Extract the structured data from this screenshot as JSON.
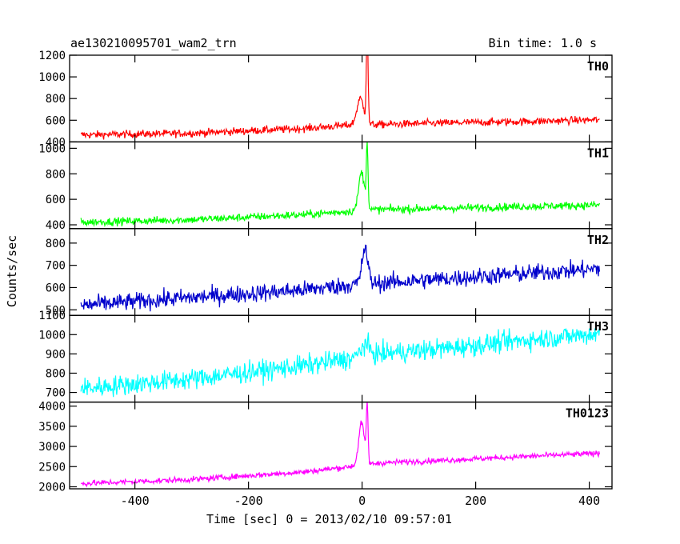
{
  "header": {
    "title": "ae130210095701_wam2_trn",
    "bin_time": "Bin time: 1.0 s"
  },
  "axes": {
    "ylabel": "Counts/sec",
    "xlabel": "Time [sec] 0 = 2013/02/10 09:57:01"
  },
  "chart_data": {
    "type": "line",
    "xlim": [
      -515,
      440
    ],
    "x_ticks": [
      -400,
      -200,
      0,
      200,
      400
    ],
    "x_range_data": [
      -495,
      418
    ],
    "grid": false,
    "legend": "none",
    "panels": [
      {
        "name": "TH0",
        "color": "#ff0000",
        "ylim": [
          400,
          1200
        ],
        "y_ticks": [
          400,
          600,
          800,
          1000,
          1200
        ],
        "baseline": [
          [
            -495,
            465
          ],
          [
            -300,
            480
          ],
          [
            -100,
            525
          ],
          [
            -10,
            560
          ],
          [
            30,
            560
          ],
          [
            150,
            575
          ],
          [
            300,
            590
          ],
          [
            418,
            605
          ]
        ],
        "noise": 25,
        "peaks": [
          [
            -3,
            240,
            6
          ],
          [
            9,
            900,
            1.5
          ]
        ]
      },
      {
        "name": "TH1",
        "color": "#00ff00",
        "ylim": [
          370,
          1050
        ],
        "y_ticks": [
          400,
          600,
          800,
          1000
        ],
        "baseline": [
          [
            -495,
            420
          ],
          [
            -300,
            440
          ],
          [
            -100,
            480
          ],
          [
            -10,
            510
          ],
          [
            30,
            520
          ],
          [
            150,
            530
          ],
          [
            300,
            545
          ],
          [
            418,
            555
          ]
        ],
        "noise": 22,
        "peaks": [
          [
            -1,
            300,
            5
          ],
          [
            9,
            520,
            1.5
          ]
        ]
      },
      {
        "name": "TH2",
        "color": "#0000cc",
        "ylim": [
          475,
          865
        ],
        "y_ticks": [
          500,
          600,
          700,
          800
        ],
        "baseline": [
          [
            -495,
            520
          ],
          [
            -300,
            555
          ],
          [
            -100,
            590
          ],
          [
            -10,
            615
          ],
          [
            30,
            620
          ],
          [
            150,
            640
          ],
          [
            300,
            665
          ],
          [
            418,
            685
          ]
        ],
        "noise": 28,
        "peaks": [
          [
            5,
            160,
            5
          ]
        ]
      },
      {
        "name": "TH3",
        "color": "#00ffff",
        "ylim": [
          650,
          1100
        ],
        "y_ticks": [
          700,
          800,
          900,
          1000,
          1100
        ],
        "baseline": [
          [
            -495,
            720
          ],
          [
            -300,
            770
          ],
          [
            -100,
            840
          ],
          [
            -10,
            880
          ],
          [
            30,
            900
          ],
          [
            150,
            930
          ],
          [
            300,
            975
          ],
          [
            418,
            1005
          ]
        ],
        "noise": 38,
        "peaks": [
          [
            5,
            60,
            8
          ]
        ]
      },
      {
        "name": "TH0123",
        "color": "#ff00ff",
        "ylim": [
          1950,
          4100
        ],
        "y_ticks": [
          2000,
          2500,
          3000,
          3500,
          4000
        ],
        "baseline": [
          [
            -495,
            2080
          ],
          [
            -300,
            2180
          ],
          [
            -100,
            2370
          ],
          [
            -10,
            2520
          ],
          [
            30,
            2590
          ],
          [
            150,
            2660
          ],
          [
            300,
            2760
          ],
          [
            418,
            2830
          ]
        ],
        "noise": 50,
        "peaks": [
          [
            -1,
            1050,
            5
          ],
          [
            9,
            1450,
            1.5
          ]
        ]
      }
    ]
  }
}
